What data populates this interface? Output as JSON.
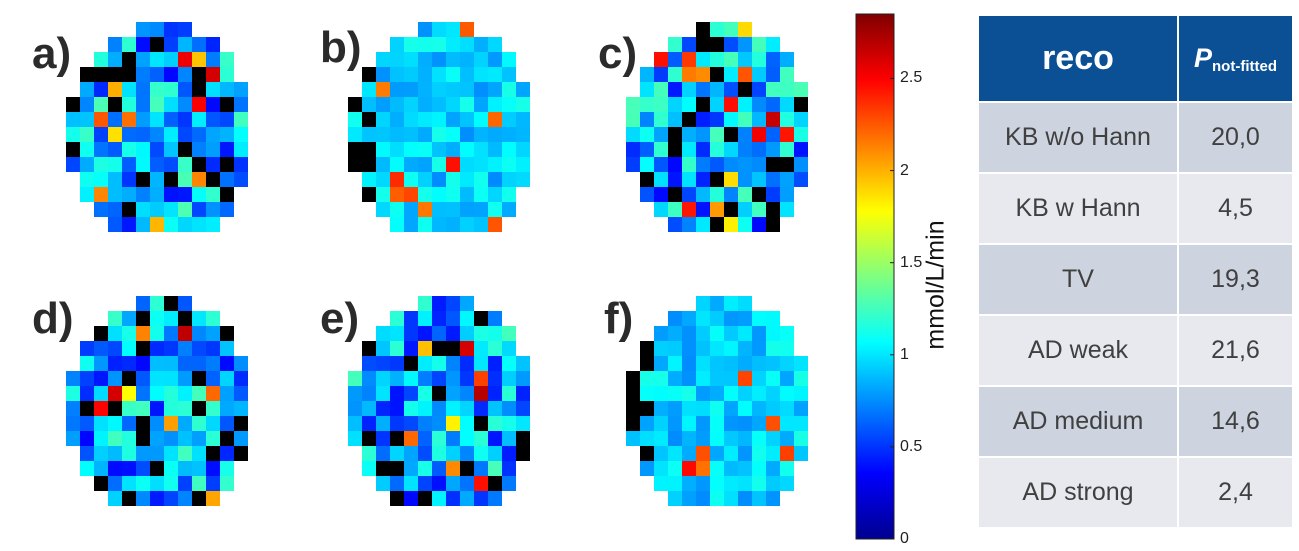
{
  "chart_data": {
    "type": "heatmap",
    "panels": [
      {
        "label": "a)",
        "smoothness": "noisy"
      },
      {
        "label": "b)",
        "smoothness": "smooth"
      },
      {
        "label": "c)",
        "smoothness": "noisy"
      },
      {
        "label": "d)",
        "smoothness": "noisy"
      },
      {
        "label": "e)",
        "smoothness": "noisy"
      },
      {
        "label": "f)",
        "smoothness": "smooth"
      }
    ],
    "colorbar": {
      "min": 0,
      "max": 2.85,
      "ticks": [
        0,
        0.5,
        1,
        1.5,
        2,
        2.5
      ],
      "tick_labels": [
        "0",
        "0.5",
        "1",
        "1.5",
        "2",
        "2.5"
      ],
      "label": "mmol/L/min",
      "colormap": "jet"
    }
  },
  "table": {
    "header_reco": "reco",
    "header_p": "P",
    "header_p_sub": "not-fitted",
    "rows": [
      {
        "reco": "KB w/o Hann",
        "value": "20,0"
      },
      {
        "reco": "KB w Hann",
        "value": "4,5"
      },
      {
        "reco": "TV",
        "value": "19,3"
      },
      {
        "reco": "AD weak",
        "value": "21,6"
      },
      {
        "reco": "AD medium",
        "value": "14,6"
      },
      {
        "reco": "AD strong",
        "value": "2,4"
      }
    ]
  },
  "colors": {
    "header_bg": "#0b4f95",
    "row_odd": "#cdd3df",
    "row_even": "#e7e9ef",
    "not_fitted": "#000000"
  }
}
